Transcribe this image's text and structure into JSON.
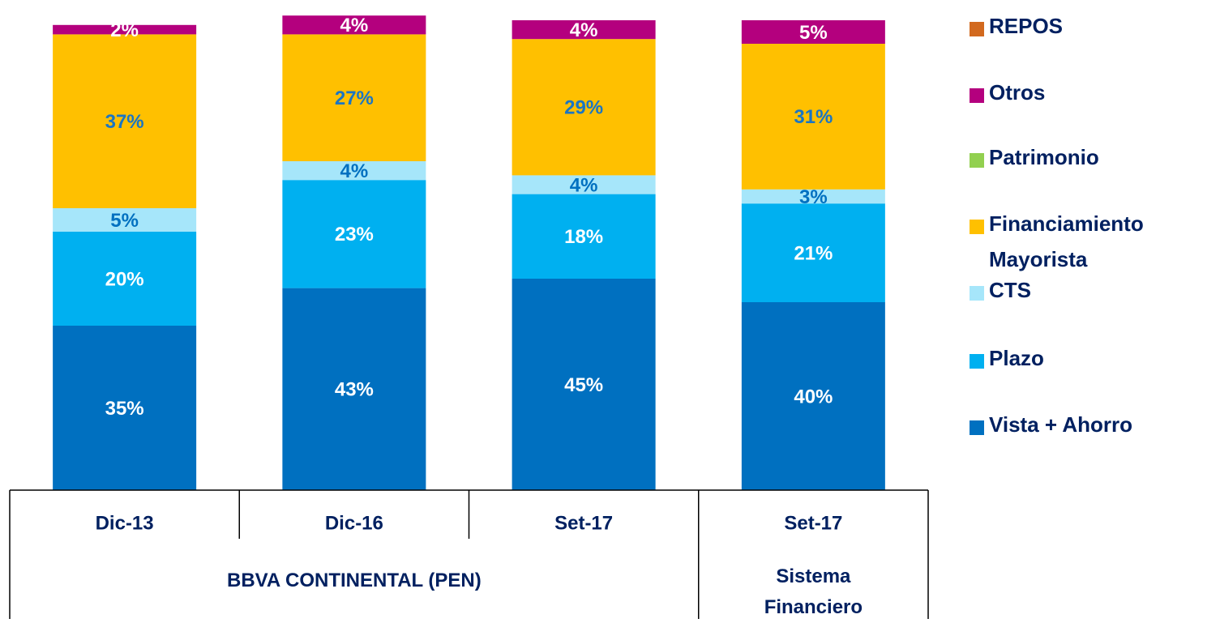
{
  "chart_data": {
    "type": "stacked_bar",
    "categories": [
      "Dic-13",
      "Dic-16",
      "Set-17",
      "Set-17"
    ],
    "groups": [
      {
        "label": "BBVA CONTINENTAL (PEN)",
        "span": 3
      },
      {
        "label": "Sistema Financiero",
        "span": 1
      }
    ],
    "ylim": [
      0,
      100
    ],
    "series": [
      {
        "name": "Vista + Ahorro",
        "color": "#0070c0",
        "label_color": "#ffffff",
        "values": [
          35,
          43,
          45,
          40
        ],
        "value_labels": [
          "35%",
          "43%",
          "45%",
          "40%"
        ]
      },
      {
        "name": "Plazo",
        "color": "#00b0f0",
        "label_color": "#ffffff",
        "values": [
          20,
          23,
          18,
          21
        ],
        "value_labels": [
          "20%",
          "23%",
          "18%",
          "21%"
        ]
      },
      {
        "name": "CTS",
        "color": "#a6e6fa",
        "label_color": "#0070c0",
        "values": [
          5,
          4,
          4,
          3
        ],
        "value_labels": [
          "5%",
          "4%",
          "4%",
          "3%"
        ]
      },
      {
        "name": "Financiamiento Mayorista",
        "color": "#ffc000",
        "label_color": "#1a75c4",
        "values": [
          37,
          27,
          29,
          31
        ],
        "value_labels": [
          "37%",
          "27%",
          "29%",
          "31%"
        ]
      },
      {
        "name": "Patrimonio",
        "color": "#92d050",
        "label_color": "#ffffff",
        "values": [
          0,
          0,
          0,
          0
        ],
        "value_labels": [
          null,
          null,
          null,
          null
        ]
      },
      {
        "name": "Otros",
        "color": "#b4007e",
        "label_color": "#ffffff",
        "values": [
          2,
          4,
          4,
          5
        ],
        "value_labels": [
          "2%",
          "4%",
          "4%",
          "5%"
        ]
      },
      {
        "name": "REPOS",
        "color": "#d2691e",
        "label_color": "#ffffff",
        "values": [
          0,
          0,
          0,
          0
        ],
        "value_labels": [
          null,
          null,
          null,
          null
        ]
      }
    ],
    "legend": "right"
  }
}
